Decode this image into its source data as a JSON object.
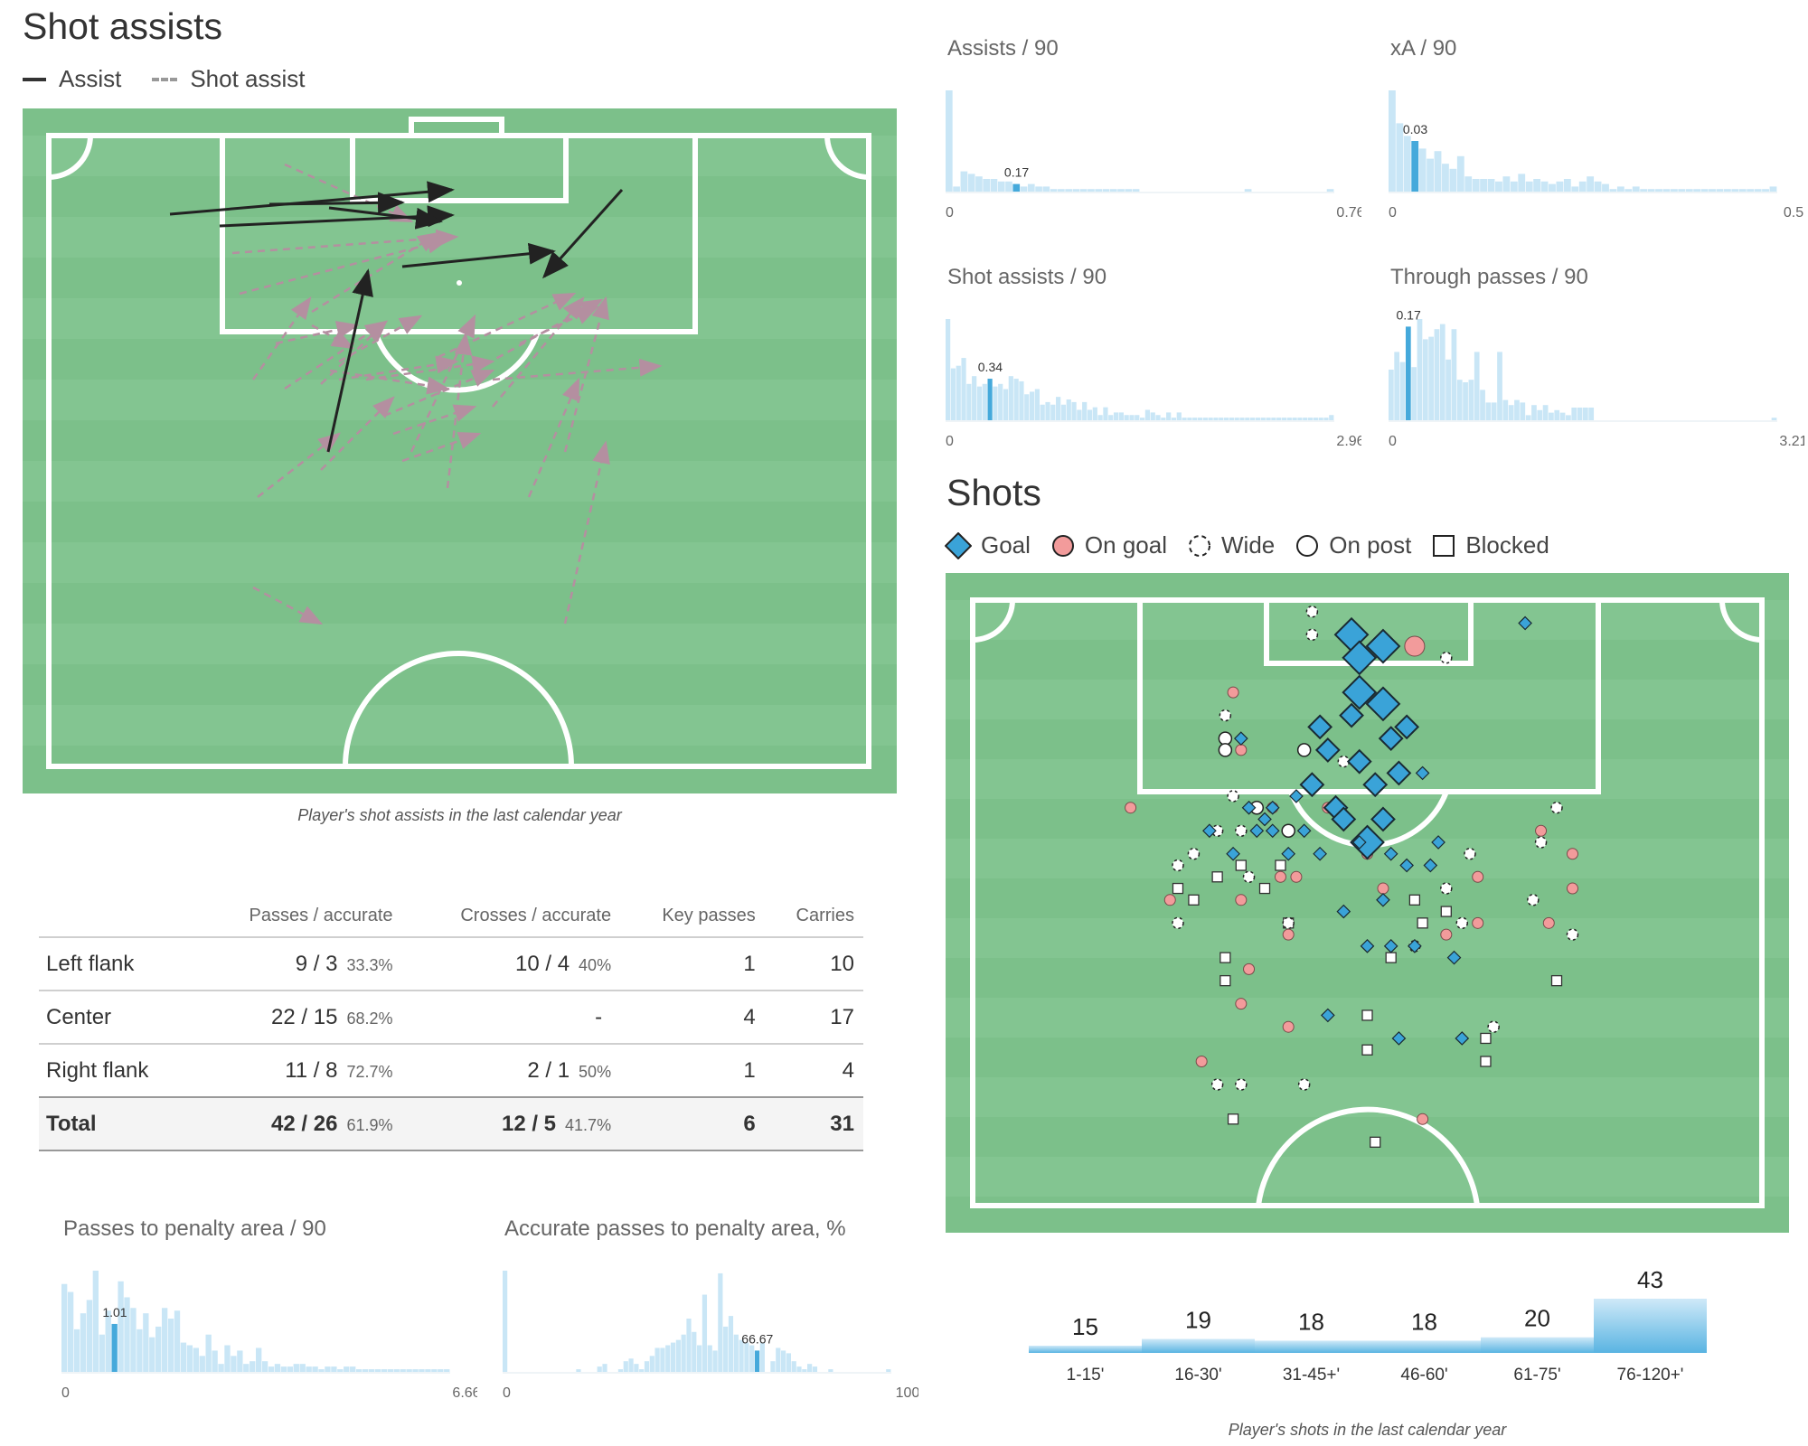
{
  "shot_assists": {
    "title": "Shot assists",
    "legend_assist": "Assist",
    "legend_shot_assist": "Shot assist",
    "caption": "Player's shot assists in the last calendar year"
  },
  "table": {
    "headers": [
      "",
      "Passes / accurate",
      "Crosses / accurate",
      "Key passes",
      "Carries"
    ],
    "rows": [
      {
        "label": "Left flank",
        "passes": "9 / 3",
        "passes_pct": "33.3%",
        "crosses": "10 / 4",
        "crosses_pct": "40%",
        "key_passes": "1",
        "carries": "10"
      },
      {
        "label": "Center",
        "passes": "22 / 15",
        "passes_pct": "68.2%",
        "crosses": "-",
        "crosses_pct": "",
        "key_passes": "4",
        "carries": "17"
      },
      {
        "label": "Right flank",
        "passes": "11 / 8",
        "passes_pct": "72.7%",
        "crosses": "2 / 1",
        "crosses_pct": "50%",
        "key_passes": "1",
        "carries": "4"
      },
      {
        "label": "Total",
        "passes": "42 / 26",
        "passes_pct": "61.9%",
        "crosses": "12 / 5",
        "crosses_pct": "41.7%",
        "key_passes": "6",
        "carries": "31"
      }
    ]
  },
  "shots": {
    "title": "Shots",
    "legend": [
      "Goal",
      "On goal",
      "Wide",
      "On post",
      "Blocked"
    ],
    "caption": "Player's shots in the last calendar year"
  },
  "chart_data": [
    {
      "type": "bar",
      "id": "assists",
      "title": "Assists / 90",
      "xmin_label": "0",
      "xmax_label": "0.76",
      "highlight_label": "0.17",
      "values": [
        40,
        2,
        8,
        7,
        6,
        5,
        5,
        4,
        4,
        3,
        2,
        3,
        2,
        2,
        1,
        1,
        1,
        1,
        1,
        1,
        1,
        1,
        1,
        1,
        1,
        1,
        0,
        0,
        0,
        0,
        0,
        0,
        0,
        0,
        0,
        0,
        0,
        0,
        0,
        0,
        1,
        0,
        0,
        0,
        0,
        0,
        0,
        0,
        0,
        0,
        0,
        1
      ],
      "highlight_index": 9
    },
    {
      "type": "bar",
      "id": "xa",
      "title": "xA / 90",
      "xmin_label": "0",
      "xmax_label": "0.5",
      "highlight_label": "0.03",
      "values": [
        40,
        27,
        22,
        20,
        17,
        13,
        16,
        11,
        9,
        14,
        6,
        5,
        5,
        5,
        4,
        6,
        4,
        7,
        4,
        5,
        4,
        3,
        4,
        5,
        2,
        4,
        6,
        4,
        3,
        1,
        2,
        1,
        2,
        1,
        1,
        1,
        1,
        1,
        1,
        1,
        1,
        1,
        1,
        1,
        1,
        1,
        1,
        1,
        1,
        1,
        2
      ],
      "highlight_index": 3
    },
    {
      "type": "bar",
      "id": "shot_assists",
      "title": "Shot assists / 90",
      "xmin_label": "0",
      "xmax_label": "2.96",
      "highlight_label": "0.34",
      "values": [
        39,
        20,
        21,
        24,
        14,
        17,
        13,
        14,
        16,
        13,
        14,
        12,
        17,
        16,
        15,
        10,
        11,
        12,
        6,
        7,
        6,
        9,
        6,
        8,
        7,
        4,
        7,
        4,
        5,
        2,
        5,
        2,
        3,
        3,
        2,
        2,
        2,
        1,
        4,
        3,
        2,
        1,
        3,
        1,
        3,
        1,
        1,
        1,
        1,
        1,
        1,
        1,
        1,
        1,
        1,
        1,
        1,
        1,
        1,
        1,
        1,
        1,
        1,
        1,
        1,
        1,
        1,
        1,
        1,
        1,
        1,
        1,
        1,
        2
      ],
      "highlight_index": 8
    },
    {
      "type": "bar",
      "id": "through_passes",
      "title": "Through passes / 90",
      "xmin_label": "0",
      "xmax_label": "3.21",
      "highlight_label": "0.17",
      "values": [
        20,
        27,
        23,
        37,
        21,
        40,
        32,
        33,
        36,
        38,
        24,
        36,
        16,
        15,
        16,
        27,
        12,
        7,
        7,
        27,
        8,
        6,
        8,
        7,
        2,
        6,
        4,
        6,
        3,
        4,
        3,
        2,
        5,
        5,
        5,
        5,
        0,
        0,
        0,
        0,
        0,
        0,
        0,
        0,
        0,
        0,
        0,
        0,
        0,
        0,
        0,
        0,
        0,
        0,
        0,
        0,
        0,
        0,
        0,
        0,
        0,
        0,
        0,
        0,
        0,
        0,
        0,
        1
      ],
      "highlight_index": 3
    },
    {
      "type": "bar",
      "id": "passes_penalty",
      "title": "Passes to penalty area / 90",
      "xmin_label": "0",
      "xmax_label": "6.66",
      "highlight_label": "1.01",
      "values": [
        33,
        30,
        16,
        22,
        27,
        38,
        14,
        23,
        18,
        34,
        28,
        24,
        16,
        22,
        13,
        17,
        24,
        20,
        23,
        11,
        10,
        9,
        6,
        14,
        8,
        3,
        10,
        6,
        8,
        3,
        4,
        9,
        4,
        2,
        3,
        2,
        2,
        3,
        3,
        2,
        2,
        1,
        2,
        2,
        1,
        2,
        2,
        1,
        1,
        1,
        1,
        1,
        1,
        1,
        1,
        1,
        1,
        1,
        1,
        1,
        1,
        1
      ],
      "highlight_index": 8
    },
    {
      "type": "bar",
      "id": "accurate_passes_penalty",
      "title": "Accurate passes to penalty area, %",
      "xmin_label": "0",
      "xmax_label": "100",
      "highlight_label": "66.67",
      "values": [
        38,
        0,
        0,
        0,
        0,
        0,
        0,
        0,
        0,
        0,
        0,
        0,
        0,
        0,
        1,
        0,
        0,
        0,
        2,
        3,
        0,
        0,
        1,
        4,
        5,
        3,
        1,
        4,
        6,
        9,
        9,
        10,
        11,
        12,
        14,
        20,
        15,
        10,
        29,
        10,
        8,
        37,
        17,
        21,
        14,
        12,
        11,
        10,
        8,
        11,
        0,
        4,
        9,
        8,
        7,
        4,
        2,
        1,
        3,
        2,
        0,
        0,
        1,
        0,
        0,
        0,
        0,
        0,
        0,
        0,
        0,
        0,
        0,
        1
      ],
      "highlight_index": 48
    },
    {
      "type": "bar",
      "id": "shots_by_time",
      "title": "",
      "categories": [
        "1-15'",
        "16-30'",
        "31-45+'",
        "46-60'",
        "61-75'",
        "76-120+'"
      ],
      "values": [
        15,
        19,
        18,
        18,
        20,
        43
      ]
    },
    {
      "type": "scatter",
      "id": "shot_map",
      "title": "Shots",
      "note": "x = percent of pitch width from left, y = metres from goal line",
      "series": [
        {
          "name": "Goal",
          "points": [
            [
              48,
              3,
              3
            ],
            [
              49,
              5,
              3
            ],
            [
              52,
              4,
              3
            ],
            [
              49,
              8,
              3
            ],
            [
              52,
              9,
              3
            ],
            [
              48,
              10,
              2
            ],
            [
              44,
              11,
              2
            ],
            [
              55,
              11,
              2
            ],
            [
              53,
              12,
              2
            ],
            [
              49,
              14,
              2
            ],
            [
              54,
              15,
              2
            ],
            [
              45,
              13,
              2
            ],
            [
              43,
              16,
              2
            ],
            [
              46,
              18,
              2
            ],
            [
              51,
              16,
              2
            ],
            [
              47,
              19,
              2
            ],
            [
              52,
              19,
              2
            ],
            [
              50,
              21,
              3
            ],
            [
              41,
              17,
              1
            ],
            [
              38,
              18,
              1
            ],
            [
              35,
              18,
              1
            ],
            [
              37,
              19,
              1
            ],
            [
              36,
              20,
              1
            ],
            [
              42,
              20,
              1
            ],
            [
              40,
              22,
              1
            ],
            [
              44,
              22,
              1
            ],
            [
              58,
              23,
              1
            ],
            [
              57,
              15,
              1
            ],
            [
              59,
              21,
              1
            ],
            [
              30,
              20,
              1
            ],
            [
              33,
              22,
              1
            ],
            [
              34,
              12,
              1
            ],
            [
              38,
              20,
              1
            ],
            [
              70,
              2,
              1
            ],
            [
              56,
              30,
              1
            ],
            [
              50,
              30,
              1
            ],
            [
              53,
              30,
              1
            ],
            [
              45,
              36,
              1
            ],
            [
              61,
              31,
              1
            ],
            [
              47,
              27,
              1
            ],
            [
              53,
              22,
              1
            ],
            [
              55,
              23,
              1
            ],
            [
              49,
              21,
              1
            ],
            [
              52,
              26,
              1
            ],
            [
              54,
              38,
              1
            ],
            [
              62,
              38,
              1
            ]
          ]
        },
        {
          "name": "On goal",
          "points": [
            [
              56,
              4,
              2
            ],
            [
              33,
              8,
              1
            ],
            [
              34,
              13,
              1
            ],
            [
              38,
              18,
              1
            ],
            [
              20,
              18,
              1
            ],
            [
              25,
              26,
              1
            ],
            [
              34,
              26,
              1
            ],
            [
              39,
              24,
              1
            ],
            [
              41,
              24,
              1
            ],
            [
              35,
              32,
              1
            ],
            [
              40,
              29,
              1
            ],
            [
              40,
              37,
              1
            ],
            [
              34,
              35,
              1
            ],
            [
              29,
              40,
              1
            ],
            [
              45,
              18,
              1
            ],
            [
              50,
              22,
              1
            ],
            [
              52,
              25,
              1
            ],
            [
              60,
              29,
              1
            ],
            [
              64,
              28,
              1
            ],
            [
              64,
              24,
              1
            ],
            [
              72,
              20,
              1
            ],
            [
              76,
              22,
              1
            ],
            [
              76,
              25,
              1
            ],
            [
              73,
              28,
              1
            ],
            [
              57,
              45,
              1
            ]
          ]
        },
        {
          "name": "Wide",
          "points": [
            [
              43,
              1,
              1
            ],
            [
              43,
              3,
              1
            ],
            [
              60,
              5,
              1
            ],
            [
              32,
              10,
              1
            ],
            [
              33,
              17,
              1
            ],
            [
              34,
              20,
              1
            ],
            [
              28,
              22,
              1
            ],
            [
              35,
              24,
              1
            ],
            [
              31,
              20,
              1
            ],
            [
              40,
              28,
              1
            ],
            [
              26,
              23,
              1
            ],
            [
              26,
              28,
              1
            ],
            [
              56,
              30,
              1
            ],
            [
              60,
              25,
              1
            ],
            [
              62,
              28,
              1
            ],
            [
              63,
              22,
              1
            ],
            [
              72,
              21,
              1
            ],
            [
              71,
              26,
              1
            ],
            [
              74,
              18,
              1
            ],
            [
              76,
              29,
              1
            ],
            [
              66,
              37,
              1
            ],
            [
              42,
              42,
              1
            ],
            [
              34,
              42,
              1
            ],
            [
              31,
              42,
              1
            ],
            [
              47,
              14,
              1
            ]
          ]
        },
        {
          "name": "On post",
          "points": [
            [
              32,
              12,
              1
            ],
            [
              32,
              13,
              1
            ],
            [
              42,
              13,
              1
            ],
            [
              36,
              18,
              1
            ],
            [
              40,
              20,
              1
            ]
          ]
        },
        {
          "name": "Blocked",
          "points": [
            [
              26,
              25,
              1
            ],
            [
              34,
              23,
              1
            ],
            [
              37,
              25,
              1
            ],
            [
              32,
              31,
              1
            ],
            [
              40,
              28,
              1
            ],
            [
              28,
              26,
              1
            ],
            [
              31,
              24,
              1
            ],
            [
              32,
              33,
              1
            ],
            [
              56,
              26,
              1
            ],
            [
              57,
              28,
              1
            ],
            [
              60,
              27,
              1
            ],
            [
              50,
              36,
              1
            ],
            [
              74,
              33,
              1
            ],
            [
              65,
              38,
              1
            ],
            [
              65,
              40,
              1
            ],
            [
              50,
              39,
              1
            ],
            [
              33,
              45,
              1
            ],
            [
              51,
              47,
              1
            ],
            [
              53,
              31,
              1
            ],
            [
              39,
              23,
              1
            ]
          ]
        }
      ]
    }
  ]
}
